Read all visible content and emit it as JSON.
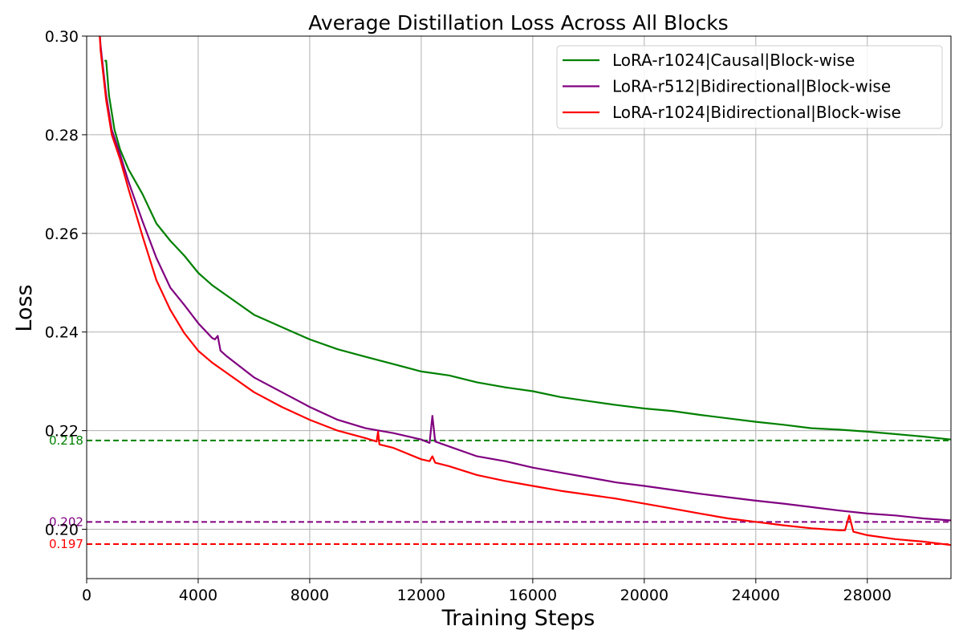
{
  "chart_data": {
    "type": "line",
    "title": "Average Distillation Loss Across All Blocks",
    "xlabel": "Training Steps",
    "ylabel": "Loss",
    "xlim": [
      0,
      31000
    ],
    "ylim": [
      0.19,
      0.3
    ],
    "xticks": [
      0,
      4000,
      8000,
      12000,
      16000,
      20000,
      24000,
      28000
    ],
    "yticks": [
      0.2,
      0.22,
      0.24,
      0.26,
      0.28,
      0.3
    ],
    "xtick_labels": [
      "0",
      "4000",
      "8000",
      "12000",
      "16000",
      "20000",
      "24000",
      "28000"
    ],
    "ytick_labels": [
      "0.20",
      "0.22",
      "0.24",
      "0.26",
      "0.28",
      "0.30"
    ],
    "grid": true,
    "legend_position": "top-right",
    "series": [
      {
        "name": "LoRA-r1024|Causal|Block-wise",
        "color": "#008000",
        "x": [
          640,
          700,
          800,
          1000,
          1200,
          1500,
          2000,
          2500,
          3000,
          3500,
          4000,
          4500,
          5000,
          6000,
          7000,
          8000,
          9000,
          10000,
          11000,
          12000,
          13000,
          14000,
          15000,
          16000,
          17000,
          18000,
          19000,
          20000,
          21000,
          22000,
          23000,
          24000,
          25000,
          26000,
          27000,
          28000,
          29000,
          30000,
          31000
        ],
        "y": [
          0.295,
          0.295,
          0.288,
          0.281,
          0.277,
          0.273,
          0.268,
          0.262,
          0.2585,
          0.2555,
          0.252,
          0.2495,
          0.2475,
          0.2435,
          0.241,
          0.2385,
          0.2365,
          0.235,
          0.2335,
          0.232,
          0.2312,
          0.2298,
          0.2288,
          0.228,
          0.2268,
          0.226,
          0.2252,
          0.2245,
          0.224,
          0.2232,
          0.2225,
          0.2218,
          0.2212,
          0.2205,
          0.2202,
          0.2198,
          0.2193,
          0.2188,
          0.2182
        ]
      },
      {
        "name": "LoRA-r512|Bidirectional|Block-wise",
        "color": "#800080",
        "x": [
          450,
          500,
          700,
          900,
          1200,
          1500,
          2000,
          2500,
          3000,
          3500,
          4000,
          4500,
          4600,
          4700,
          4800,
          5000,
          6000,
          7000,
          8000,
          9000,
          10000,
          11000,
          12000,
          12300,
          12400,
          12500,
          13000,
          14000,
          15000,
          16000,
          17000,
          18000,
          19000,
          20000,
          21000,
          22000,
          23000,
          24000,
          25000,
          26000,
          27000,
          28000,
          29000,
          30000,
          31000
        ],
        "y": [
          0.302,
          0.298,
          0.288,
          0.281,
          0.276,
          0.2705,
          0.2625,
          0.255,
          0.249,
          0.2455,
          0.2418,
          0.2388,
          0.2385,
          0.2392,
          0.2362,
          0.2352,
          0.2308,
          0.2278,
          0.2248,
          0.2222,
          0.2205,
          0.2195,
          0.2182,
          0.2175,
          0.223,
          0.2178,
          0.2168,
          0.2148,
          0.2138,
          0.2125,
          0.2115,
          0.2105,
          0.2095,
          0.2088,
          0.208,
          0.2072,
          0.2065,
          0.2058,
          0.2052,
          0.2045,
          0.2038,
          0.2032,
          0.2028,
          0.2022,
          0.2018
        ]
      },
      {
        "name": "LoRA-r1024|Bidirectional|Block-wise",
        "color": "#ff0000",
        "x": [
          450,
          500,
          700,
          900,
          1200,
          1500,
          2000,
          2500,
          3000,
          3500,
          4000,
          4500,
          5000,
          6000,
          7000,
          8000,
          9000,
          10000,
          10400,
          10450,
          10500,
          11000,
          12000,
          12300,
          12400,
          12500,
          13000,
          14000,
          15000,
          16000,
          17000,
          18000,
          19000,
          20000,
          21000,
          22000,
          23000,
          24000,
          25000,
          26000,
          27000,
          27200,
          27350,
          27500,
          28000,
          29000,
          30000,
          31000
        ],
        "y": [
          0.302,
          0.297,
          0.287,
          0.28,
          0.275,
          0.269,
          0.2595,
          0.2505,
          0.2445,
          0.2398,
          0.2362,
          0.2338,
          0.2318,
          0.2278,
          0.2248,
          0.2222,
          0.22,
          0.2185,
          0.2178,
          0.2198,
          0.2172,
          0.2165,
          0.2142,
          0.2138,
          0.2148,
          0.2135,
          0.2128,
          0.211,
          0.2098,
          0.2088,
          0.2078,
          0.207,
          0.2062,
          0.2052,
          0.2042,
          0.2032,
          0.2022,
          0.2015,
          0.2008,
          0.2002,
          0.1998,
          0.1998,
          0.2028,
          0.1995,
          0.1988,
          0.198,
          0.1975,
          0.1968
        ]
      }
    ],
    "reference_lines": [
      {
        "value": 0.218,
        "label": "0.218",
        "color": "#008000"
      },
      {
        "value": 0.2015,
        "label": "0.202",
        "color": "#800080"
      },
      {
        "value": 0.197,
        "label": "0.197",
        "color": "#ff0000"
      }
    ]
  }
}
